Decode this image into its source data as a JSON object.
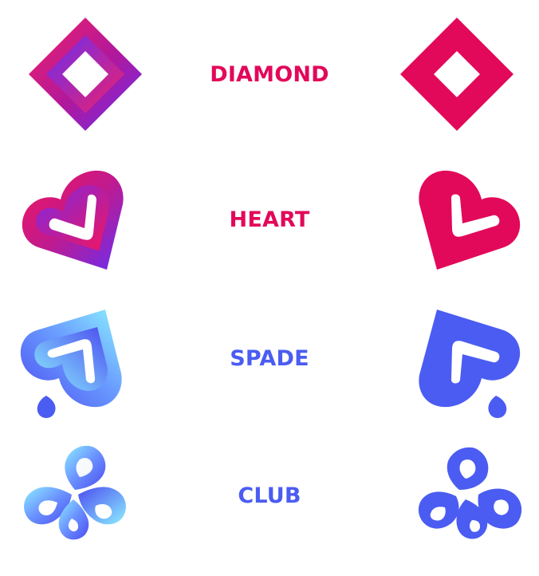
{
  "colors": {
    "red": "#e2085a",
    "magenta": "#d8107e",
    "purple": "#7c2ce8",
    "blue": "#4b5cf2",
    "cyan": "#7fe4ff",
    "white": "#ffffff"
  },
  "rows": [
    {
      "label": "DIAMOND",
      "color": "#e2085a",
      "icon_gradient": "diamond-gradient-icon",
      "icon_flat": "diamond-flat-icon"
    },
    {
      "label": "HEART",
      "color": "#e2085a",
      "icon_gradient": "heart-gradient-icon",
      "icon_flat": "heart-flat-icon"
    },
    {
      "label": "SPADE",
      "color": "#4b5cf2",
      "icon_gradient": "spade-gradient-icon",
      "icon_flat": "spade-flat-icon"
    },
    {
      "label": "CLUB",
      "color": "#4b5cf2",
      "icon_gradient": "club-gradient-icon",
      "icon_flat": "club-flat-icon"
    }
  ]
}
